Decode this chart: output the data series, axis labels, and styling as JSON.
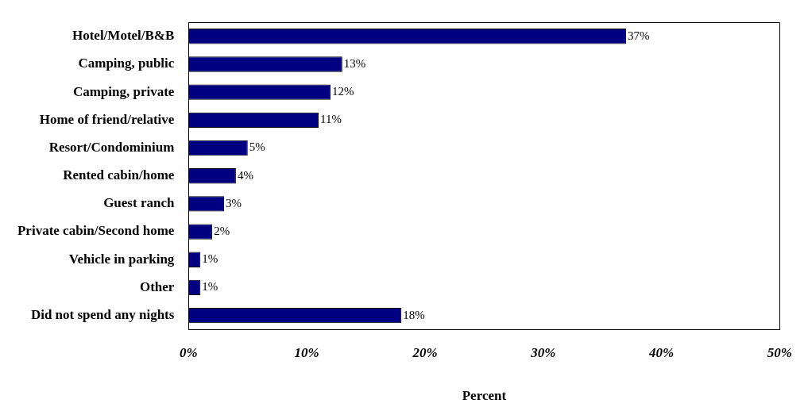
{
  "chart_data": {
    "type": "bar",
    "orientation": "horizontal",
    "xlabel": "Percent",
    "categories": [
      "Hotel/Motel/B&B",
      "Camping, public",
      "Camping, private",
      "Home of friend/relative",
      "Resort/Condominium",
      "Rented cabin/home",
      "Guest ranch",
      "Private cabin/Second home",
      "Vehicle in parking",
      "Other",
      "Did not spend any nights"
    ],
    "values": [
      37,
      13,
      12,
      11,
      5,
      4,
      3,
      2,
      1,
      1,
      18
    ],
    "value_labels": [
      "37%",
      "13%",
      "12%",
      "11%",
      "5%",
      "4%",
      "3%",
      "2%",
      "1%",
      "1%",
      "18%"
    ],
    "color": "#000080",
    "xlim": [
      0,
      50
    ],
    "xticks": [
      {
        "value": 0,
        "label": "0%"
      },
      {
        "value": 10,
        "label": "10%"
      },
      {
        "value": 20,
        "label": "20%"
      },
      {
        "value": 30,
        "label": "30%"
      },
      {
        "value": 40,
        "label": "40%"
      },
      {
        "value": 50,
        "label": "50%"
      }
    ],
    "grid": false,
    "legend": false
  }
}
